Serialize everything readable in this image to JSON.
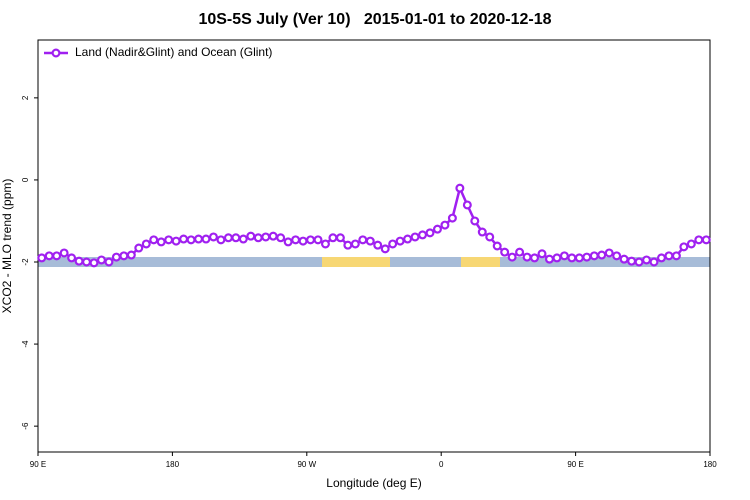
{
  "chart_data": {
    "type": "line",
    "title": "10S-5S July (Ver 10)   2015-01-01 to 2020-12-18",
    "xlabel": "Longitude (deg E)",
    "ylabel": "XCO2 - MLO trend (ppm)",
    "xlim": [
      90,
      540
    ],
    "ylim": [
      -6.63,
      3.41
    ],
    "xticks": [
      {
        "value": 90,
        "label": "90 E"
      },
      180,
      {
        "value": 270,
        "label": "90 W"
      },
      {
        "value": 360,
        "label": "0"
      },
      {
        "value": 450,
        "label": "90 E"
      },
      {
        "value": 540,
        "label": "180"
      }
    ],
    "yticks": [
      2,
      0,
      -2,
      -4,
      -6
    ],
    "legend": "top-left",
    "x": [
      92.5,
      97.5,
      102.5,
      107.5,
      112.5,
      117.5,
      122.5,
      127.5,
      132.5,
      137.5,
      142.5,
      147.5,
      152.5,
      157.5,
      162.5,
      167.5,
      172.5,
      177.5,
      182.5,
      187.5,
      192.5,
      197.5,
      202.5,
      207.5,
      212.5,
      217.5,
      222.5,
      227.5,
      232.5,
      237.5,
      242.5,
      247.5,
      252.5,
      257.5,
      262.5,
      267.5,
      272.5,
      277.5,
      282.5,
      287.5,
      292.5,
      297.5,
      302.5,
      307.5,
      312.5,
      317.5,
      322.5,
      327.5,
      332.5,
      337.5,
      342.5,
      347.5,
      352.5,
      357.5,
      362.5,
      367.5,
      372.5,
      377.5,
      382.5,
      387.5,
      392.5,
      397.5,
      402.5,
      407.5,
      412.5,
      417.5,
      422.5,
      427.5,
      432.5,
      437.5,
      442.5,
      447.5,
      452.5,
      457.5,
      462.5,
      467.5,
      472.5,
      477.5,
      482.5,
      487.5,
      492.5,
      497.5,
      502.5,
      507.5,
      512.5,
      517.5,
      522.5,
      527.5,
      532.5,
      537.5
    ],
    "series": [
      {
        "name": "Land (Nadir&Glint) and Ocean (Glint)",
        "color": "#a020f0",
        "values": [
          -1.9,
          -1.85,
          -1.85,
          -1.78,
          -1.9,
          -1.98,
          -2.0,
          -2.02,
          -1.95,
          -2.0,
          -1.88,
          -1.85,
          -1.83,
          -1.66,
          -1.56,
          -1.46,
          -1.51,
          -1.46,
          -1.49,
          -1.44,
          -1.46,
          -1.44,
          -1.44,
          -1.39,
          -1.46,
          -1.41,
          -1.41,
          -1.44,
          -1.37,
          -1.41,
          -1.39,
          -1.37,
          -1.41,
          -1.51,
          -1.46,
          -1.49,
          -1.46,
          -1.46,
          -1.56,
          -1.41,
          -1.41,
          -1.59,
          -1.56,
          -1.46,
          -1.49,
          -1.59,
          -1.68,
          -1.56,
          -1.49,
          -1.44,
          -1.39,
          -1.34,
          -1.29,
          -1.2,
          -1.1,
          -0.93,
          -0.2,
          -0.61,
          -1.0,
          -1.27,
          -1.39,
          -1.61,
          -1.76,
          -1.88,
          -1.76,
          -1.88,
          -1.9,
          -1.8,
          -1.93,
          -1.9,
          -1.85,
          -1.9,
          -1.9,
          -1.88,
          -1.85,
          -1.83,
          -1.78,
          -1.85,
          -1.93,
          -1.98,
          -2.0,
          -1.95,
          -2.0,
          -1.9,
          -1.85,
          -1.85,
          -1.63,
          -1.56,
          -1.46,
          -1.46
        ]
      }
    ]
  }
}
